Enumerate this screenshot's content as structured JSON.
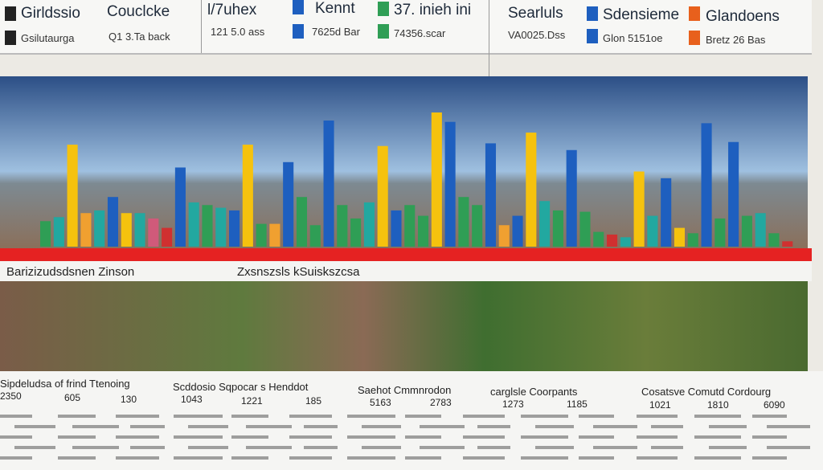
{
  "header": {
    "row1": [
      "Girldssio",
      "Couclcke",
      "l/7uhex",
      "Kennt",
      "37. inieh ini",
      "Searluls",
      "Sdensieme",
      "Glandoens"
    ],
    "row2": [
      "Gsilutaurga",
      "Q1 3.Ta back",
      "121 5.0 ass",
      "7625d Bar",
      "74356.scar",
      "VA0025.Dss",
      "Glon 5151oe",
      "Bretz 26 Bas"
    ]
  },
  "chart_data": {
    "type": "bar",
    "values": [
      19,
      22,
      76,
      25,
      27,
      37,
      25,
      25,
      21,
      14,
      59,
      33,
      31,
      29,
      27,
      76,
      17,
      17,
      63,
      37,
      16,
      94,
      31,
      21,
      33,
      75,
      27,
      31,
      23,
      100,
      93,
      37,
      31,
      77,
      16,
      23,
      85,
      34,
      27,
      72,
      26,
      11,
      9,
      7,
      56,
      23,
      51,
      14,
      10,
      92,
      21,
      78,
      23,
      25,
      10,
      4
    ],
    "colors": [
      "#2f9e55",
      "#22a8a0",
      "#f5c20e",
      "#f0a030",
      "#22a8a0",
      "#1e5fbf",
      "#f5c20e",
      "#22a8a0",
      "#d05a7a",
      "#d03030",
      "#1e5fbf",
      "#22a8a0",
      "#2f9e55",
      "#22a8a0",
      "#1e5fbf",
      "#f5c20e",
      "#2f9e55",
      "#f0a030",
      "#1e5fbf",
      "#2f9e55",
      "#2f9e55",
      "#1e5fbf",
      "#2f9e55",
      "#2f9e55",
      "#22a8a0",
      "#f5c20e",
      "#1e5fbf",
      "#2f9e55",
      "#2f9e55",
      "#f5c20e",
      "#1e5fbf",
      "#2f9e55",
      "#2f9e55",
      "#1e5fbf",
      "#f0a030",
      "#1e5fbf",
      "#f5c20e",
      "#22a8a0",
      "#2f9e55",
      "#1e5fbf",
      "#2f9e55",
      "#2f9e55",
      "#d03030",
      "#22a8a0",
      "#f5c20e",
      "#22a8a0",
      "#1e5fbf",
      "#f5c20e",
      "#2f9e55",
      "#1e5fbf",
      "#2f9e55",
      "#1e5fbf",
      "#2f9e55",
      "#22a8a0",
      "#2f9e55",
      "#d03030"
    ]
  },
  "captions": [
    "Barizizudsdsnen Zinson",
    "Zxsnszsls kSuiskszcsa"
  ],
  "table": {
    "headers": [
      "Sipdeludsa of frind Ttenoing",
      "Scddosio Sqpocar s Henddot",
      "Saehot Cmmnrodon",
      "carglsle Coorpants",
      "Cosatsve Comutd Cordourg"
    ],
    "numbers": [
      2350,
      605,
      130,
      1043,
      1221,
      185,
      5163,
      2783,
      1273,
      1185,
      1021,
      1810,
      6090
    ]
  }
}
